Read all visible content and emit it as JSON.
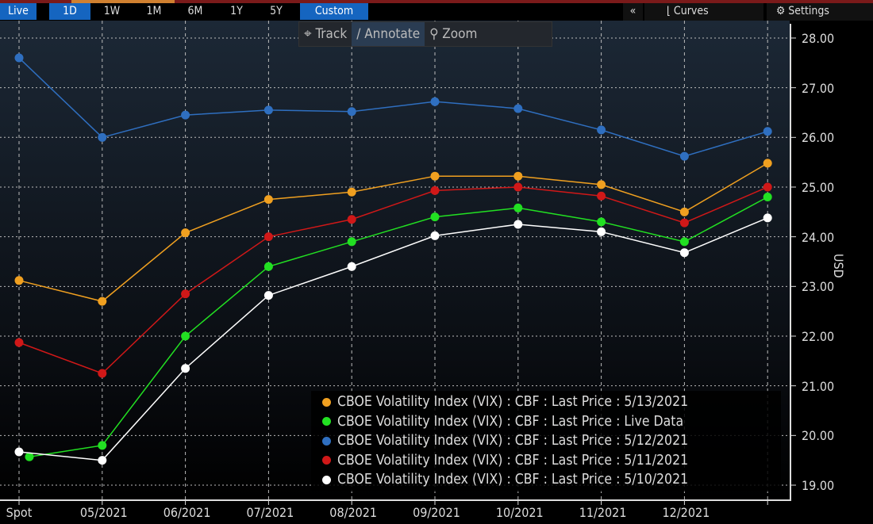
{
  "toolbar": {
    "ranges": [
      "Live",
      "1D",
      "1W",
      "1M",
      "6M",
      "1Y",
      "5Y",
      "Custom"
    ],
    "active": [
      "Live",
      "1D",
      "Custom"
    ],
    "collapse_label": "«",
    "curves_label": "Curves",
    "settings_label": "Settings",
    "track_label": "Track",
    "annotate_label": "Annotate",
    "zoom_label": "Zoom"
  },
  "chart_data": {
    "type": "line",
    "ylabel": "USD",
    "ylim": [
      19,
      28
    ],
    "yticks": [
      "19.00",
      "20.00",
      "21.00",
      "22.00",
      "23.00",
      "24.00",
      "25.00",
      "26.00",
      "27.00",
      "28.00"
    ],
    "categories": [
      "Spot",
      "05/2021",
      "06/2021",
      "07/2021",
      "08/2021",
      "09/2021",
      "10/2021",
      "11/2021",
      "12/2021",
      ""
    ],
    "grid": true,
    "legend_placement": "bottom-right",
    "series": [
      {
        "name": "CBOE Volatility Index (VIX) : CBF : Last Price : 5/13/2021",
        "color": "#f0a020",
        "values": [
          23.12,
          22.7,
          24.08,
          24.75,
          24.9,
          25.22,
          25.22,
          25.05,
          24.5,
          25.48
        ]
      },
      {
        "name": "CBOE Volatility Index (VIX) : CBF : Last Price : Live Data",
        "color": "#22e022",
        "values": [
          19.57,
          19.8,
          22.0,
          23.4,
          23.9,
          24.4,
          24.58,
          24.3,
          23.9,
          24.8
        ]
      },
      {
        "name": "CBOE Volatility Index (VIX) : CBF : Last Price : 5/12/2021",
        "color": "#2f6fc0",
        "values": [
          27.6,
          26.0,
          26.45,
          26.55,
          26.52,
          26.72,
          26.58,
          26.15,
          25.62,
          26.12
        ]
      },
      {
        "name": "CBOE Volatility Index (VIX) : CBF : Last Price : 5/11/2021",
        "color": "#d01818",
        "values": [
          21.87,
          21.25,
          22.85,
          24.0,
          24.35,
          24.93,
          25.0,
          24.82,
          24.28,
          25.0
        ]
      },
      {
        "name": "CBOE Volatility Index (VIX) : CBF : Last Price : 5/10/2021",
        "color": "#ffffff",
        "values": [
          19.67,
          19.5,
          21.35,
          22.82,
          23.4,
          24.02,
          24.25,
          24.1,
          23.68,
          24.38
        ]
      }
    ]
  }
}
